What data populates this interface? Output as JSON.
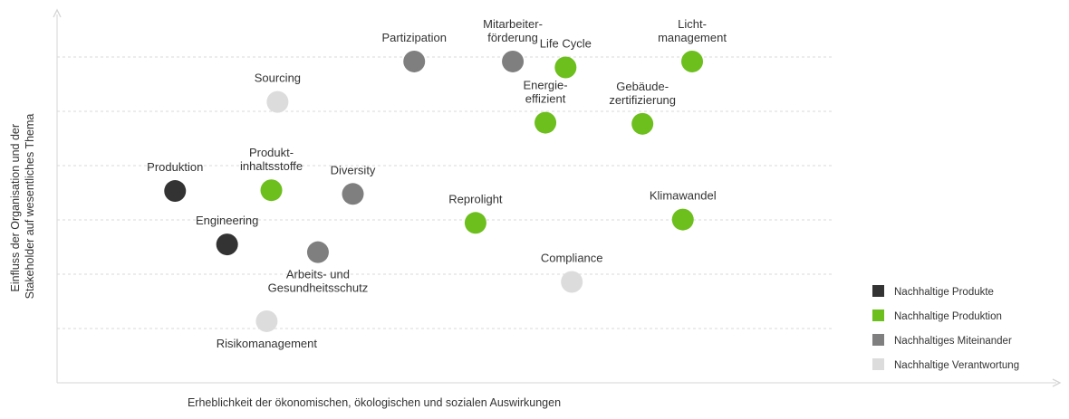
{
  "chart_data": {
    "type": "scatter",
    "title": "",
    "xlabel": "Erheblichkeit der ökonomischen, ökologischen und sozialen Auswirkungen",
    "ylabel": [
      "Einfluss der Organisation und der",
      "Stakeholder auf wesentliches Thema"
    ],
    "xlim": [
      0,
      100
    ],
    "ylim": [
      0,
      100
    ],
    "grid": "horizontal-dashed",
    "legend_position": "bottom-right",
    "categories": [
      {
        "key": "produkte",
        "name": "Nachhaltige Produkte",
        "color": "#333333"
      },
      {
        "key": "produktion",
        "name": "Nachhaltige Produktion",
        "color": "#6cbf1c"
      },
      {
        "key": "miteinander",
        "name": "Nachhaltiges Miteinander",
        "color": "#7f7f7f"
      },
      {
        "key": "verantwortung",
        "name": "Nachhaltige Verantwortung",
        "color": "#dcdcdc"
      }
    ],
    "points": [
      {
        "label": [
          "Partizipation"
        ],
        "x": 46.0,
        "y": 86.6,
        "category": "miteinander",
        "label_pos": "above"
      },
      {
        "label": [
          "Mitarbeiter-",
          "förderung"
        ],
        "x": 58.7,
        "y": 86.6,
        "category": "miteinander",
        "label_pos": "above"
      },
      {
        "label": [
          "Life Cycle"
        ],
        "x": 65.5,
        "y": 85.0,
        "category": "produktion",
        "label_pos": "above"
      },
      {
        "label": [
          "Licht-",
          "management"
        ],
        "x": 81.8,
        "y": 86.6,
        "category": "produktion",
        "label_pos": "above"
      },
      {
        "label": [
          "Sourcing"
        ],
        "x": 28.4,
        "y": 75.7,
        "category": "verantwortung",
        "label_pos": "above"
      },
      {
        "label": [
          "Energie-",
          "effizient"
        ],
        "x": 62.9,
        "y": 70.1,
        "category": "produktion",
        "label_pos": "above"
      },
      {
        "label": [
          "Gebäude-",
          "zertifizierung"
        ],
        "x": 75.4,
        "y": 69.8,
        "category": "produktion",
        "label_pos": "above"
      },
      {
        "label": [
          "Produktion"
        ],
        "x": 15.2,
        "y": 51.7,
        "category": "produkte",
        "label_pos": "above"
      },
      {
        "label": [
          "Produkt-",
          "inhaltsstoffe"
        ],
        "x": 27.6,
        "y": 51.9,
        "category": "produktion",
        "label_pos": "above"
      },
      {
        "label": [
          "Diversity"
        ],
        "x": 38.1,
        "y": 50.9,
        "category": "miteinander",
        "label_pos": "above"
      },
      {
        "label": [
          "Reprolight"
        ],
        "x": 53.9,
        "y": 43.1,
        "category": "produktion",
        "label_pos": "above"
      },
      {
        "label": [
          "Klimawandel"
        ],
        "x": 80.6,
        "y": 44.0,
        "category": "produktion",
        "label_pos": "above"
      },
      {
        "label": [
          "Engineering"
        ],
        "x": 21.9,
        "y": 37.3,
        "category": "produkte",
        "label_pos": "above"
      },
      {
        "label": [
          "Arbeits- und",
          "Gesundheitsschutz"
        ],
        "x": 33.6,
        "y": 35.2,
        "category": "miteinander",
        "label_pos": "below"
      },
      {
        "label": [
          "Compliance"
        ],
        "x": 66.3,
        "y": 27.2,
        "category": "verantwortung",
        "label_pos": "above"
      },
      {
        "label": [
          "Risikomanagement"
        ],
        "x": 27.0,
        "y": 16.6,
        "category": "verantwortung",
        "label_pos": "below"
      }
    ]
  }
}
